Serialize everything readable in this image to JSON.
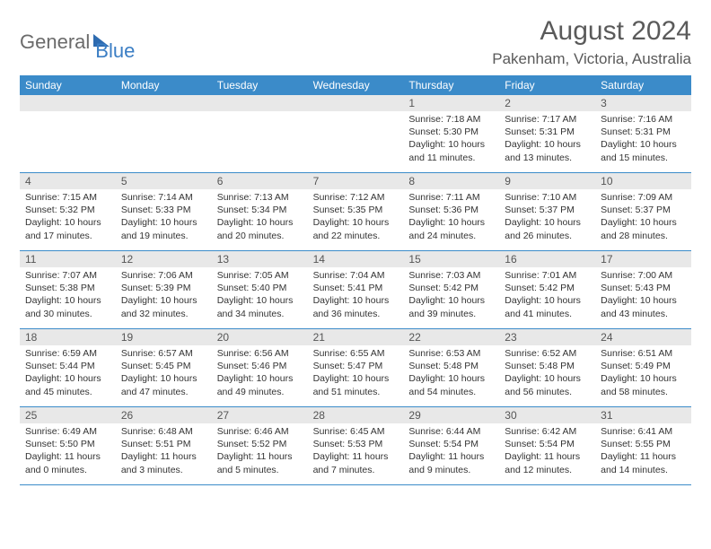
{
  "logo": {
    "part1": "General",
    "part2": "Blue"
  },
  "title": "August 2024",
  "location": "Pakenham, Victoria, Australia",
  "colors": {
    "header_bg": "#3b8bc9",
    "daynum_bg": "#e8e8e8",
    "rule": "#3b8bc9",
    "text": "#333333",
    "logo_gray": "#6b6b6b",
    "logo_blue": "#3b7ec4"
  },
  "weekdays": [
    "Sunday",
    "Monday",
    "Tuesday",
    "Wednesday",
    "Thursday",
    "Friday",
    "Saturday"
  ],
  "weeks": [
    [
      {
        "n": "",
        "sr": "",
        "ss": "",
        "dl": ""
      },
      {
        "n": "",
        "sr": "",
        "ss": "",
        "dl": ""
      },
      {
        "n": "",
        "sr": "",
        "ss": "",
        "dl": ""
      },
      {
        "n": "",
        "sr": "",
        "ss": "",
        "dl": ""
      },
      {
        "n": "1",
        "sr": "Sunrise: 7:18 AM",
        "ss": "Sunset: 5:30 PM",
        "dl": "Daylight: 10 hours and 11 minutes."
      },
      {
        "n": "2",
        "sr": "Sunrise: 7:17 AM",
        "ss": "Sunset: 5:31 PM",
        "dl": "Daylight: 10 hours and 13 minutes."
      },
      {
        "n": "3",
        "sr": "Sunrise: 7:16 AM",
        "ss": "Sunset: 5:31 PM",
        "dl": "Daylight: 10 hours and 15 minutes."
      }
    ],
    [
      {
        "n": "4",
        "sr": "Sunrise: 7:15 AM",
        "ss": "Sunset: 5:32 PM",
        "dl": "Daylight: 10 hours and 17 minutes."
      },
      {
        "n": "5",
        "sr": "Sunrise: 7:14 AM",
        "ss": "Sunset: 5:33 PM",
        "dl": "Daylight: 10 hours and 19 minutes."
      },
      {
        "n": "6",
        "sr": "Sunrise: 7:13 AM",
        "ss": "Sunset: 5:34 PM",
        "dl": "Daylight: 10 hours and 20 minutes."
      },
      {
        "n": "7",
        "sr": "Sunrise: 7:12 AM",
        "ss": "Sunset: 5:35 PM",
        "dl": "Daylight: 10 hours and 22 minutes."
      },
      {
        "n": "8",
        "sr": "Sunrise: 7:11 AM",
        "ss": "Sunset: 5:36 PM",
        "dl": "Daylight: 10 hours and 24 minutes."
      },
      {
        "n": "9",
        "sr": "Sunrise: 7:10 AM",
        "ss": "Sunset: 5:37 PM",
        "dl": "Daylight: 10 hours and 26 minutes."
      },
      {
        "n": "10",
        "sr": "Sunrise: 7:09 AM",
        "ss": "Sunset: 5:37 PM",
        "dl": "Daylight: 10 hours and 28 minutes."
      }
    ],
    [
      {
        "n": "11",
        "sr": "Sunrise: 7:07 AM",
        "ss": "Sunset: 5:38 PM",
        "dl": "Daylight: 10 hours and 30 minutes."
      },
      {
        "n": "12",
        "sr": "Sunrise: 7:06 AM",
        "ss": "Sunset: 5:39 PM",
        "dl": "Daylight: 10 hours and 32 minutes."
      },
      {
        "n": "13",
        "sr": "Sunrise: 7:05 AM",
        "ss": "Sunset: 5:40 PM",
        "dl": "Daylight: 10 hours and 34 minutes."
      },
      {
        "n": "14",
        "sr": "Sunrise: 7:04 AM",
        "ss": "Sunset: 5:41 PM",
        "dl": "Daylight: 10 hours and 36 minutes."
      },
      {
        "n": "15",
        "sr": "Sunrise: 7:03 AM",
        "ss": "Sunset: 5:42 PM",
        "dl": "Daylight: 10 hours and 39 minutes."
      },
      {
        "n": "16",
        "sr": "Sunrise: 7:01 AM",
        "ss": "Sunset: 5:42 PM",
        "dl": "Daylight: 10 hours and 41 minutes."
      },
      {
        "n": "17",
        "sr": "Sunrise: 7:00 AM",
        "ss": "Sunset: 5:43 PM",
        "dl": "Daylight: 10 hours and 43 minutes."
      }
    ],
    [
      {
        "n": "18",
        "sr": "Sunrise: 6:59 AM",
        "ss": "Sunset: 5:44 PM",
        "dl": "Daylight: 10 hours and 45 minutes."
      },
      {
        "n": "19",
        "sr": "Sunrise: 6:57 AM",
        "ss": "Sunset: 5:45 PM",
        "dl": "Daylight: 10 hours and 47 minutes."
      },
      {
        "n": "20",
        "sr": "Sunrise: 6:56 AM",
        "ss": "Sunset: 5:46 PM",
        "dl": "Daylight: 10 hours and 49 minutes."
      },
      {
        "n": "21",
        "sr": "Sunrise: 6:55 AM",
        "ss": "Sunset: 5:47 PM",
        "dl": "Daylight: 10 hours and 51 minutes."
      },
      {
        "n": "22",
        "sr": "Sunrise: 6:53 AM",
        "ss": "Sunset: 5:48 PM",
        "dl": "Daylight: 10 hours and 54 minutes."
      },
      {
        "n": "23",
        "sr": "Sunrise: 6:52 AM",
        "ss": "Sunset: 5:48 PM",
        "dl": "Daylight: 10 hours and 56 minutes."
      },
      {
        "n": "24",
        "sr": "Sunrise: 6:51 AM",
        "ss": "Sunset: 5:49 PM",
        "dl": "Daylight: 10 hours and 58 minutes."
      }
    ],
    [
      {
        "n": "25",
        "sr": "Sunrise: 6:49 AM",
        "ss": "Sunset: 5:50 PM",
        "dl": "Daylight: 11 hours and 0 minutes."
      },
      {
        "n": "26",
        "sr": "Sunrise: 6:48 AM",
        "ss": "Sunset: 5:51 PM",
        "dl": "Daylight: 11 hours and 3 minutes."
      },
      {
        "n": "27",
        "sr": "Sunrise: 6:46 AM",
        "ss": "Sunset: 5:52 PM",
        "dl": "Daylight: 11 hours and 5 minutes."
      },
      {
        "n": "28",
        "sr": "Sunrise: 6:45 AM",
        "ss": "Sunset: 5:53 PM",
        "dl": "Daylight: 11 hours and 7 minutes."
      },
      {
        "n": "29",
        "sr": "Sunrise: 6:44 AM",
        "ss": "Sunset: 5:54 PM",
        "dl": "Daylight: 11 hours and 9 minutes."
      },
      {
        "n": "30",
        "sr": "Sunrise: 6:42 AM",
        "ss": "Sunset: 5:54 PM",
        "dl": "Daylight: 11 hours and 12 minutes."
      },
      {
        "n": "31",
        "sr": "Sunrise: 6:41 AM",
        "ss": "Sunset: 5:55 PM",
        "dl": "Daylight: 11 hours and 14 minutes."
      }
    ]
  ]
}
